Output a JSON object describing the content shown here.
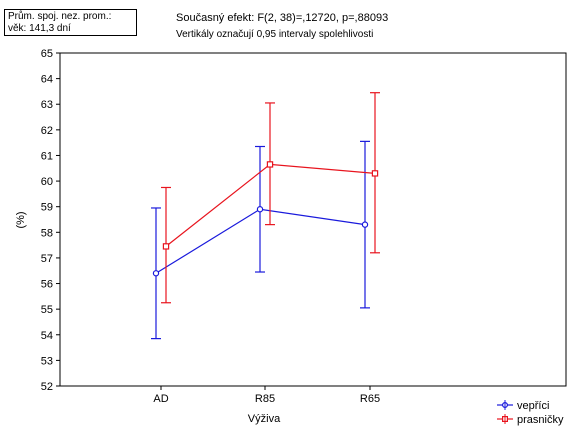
{
  "covariate_box": {
    "line1": "Prům. spoj. nez. prom.:",
    "line2": "věk: 141,3 dní"
  },
  "chart_data": {
    "type": "line",
    "title": "Současný efekt: F(2, 38)=,12720, p=,88093",
    "subtitle": "Vertikály označují 0,95 intervaly spolehlivosti",
    "xlabel": "Výživa",
    "ylabel": "(%)",
    "categories": [
      "AD",
      "R85",
      "R65"
    ],
    "ylim": [
      52,
      65
    ],
    "yticks": [
      "52",
      "53",
      "54",
      "55",
      "56",
      "57",
      "58",
      "59",
      "60",
      "61",
      "62",
      "63",
      "64",
      "65"
    ],
    "grid": false,
    "legend_position": "bottom-right",
    "series": [
      {
        "name": "vepříci",
        "color": "#1a1adc",
        "marker": "circle",
        "values": [
          56.4,
          58.9,
          58.3
        ],
        "ci_low": [
          53.85,
          56.45,
          55.05
        ],
        "ci_high": [
          58.95,
          61.35,
          61.55
        ]
      },
      {
        "name": "prasničky",
        "color": "#e8141e",
        "marker": "square",
        "values": [
          57.45,
          60.65,
          60.3
        ],
        "ci_low": [
          55.25,
          58.3,
          57.2
        ],
        "ci_high": [
          59.75,
          63.05,
          63.45
        ]
      }
    ]
  }
}
